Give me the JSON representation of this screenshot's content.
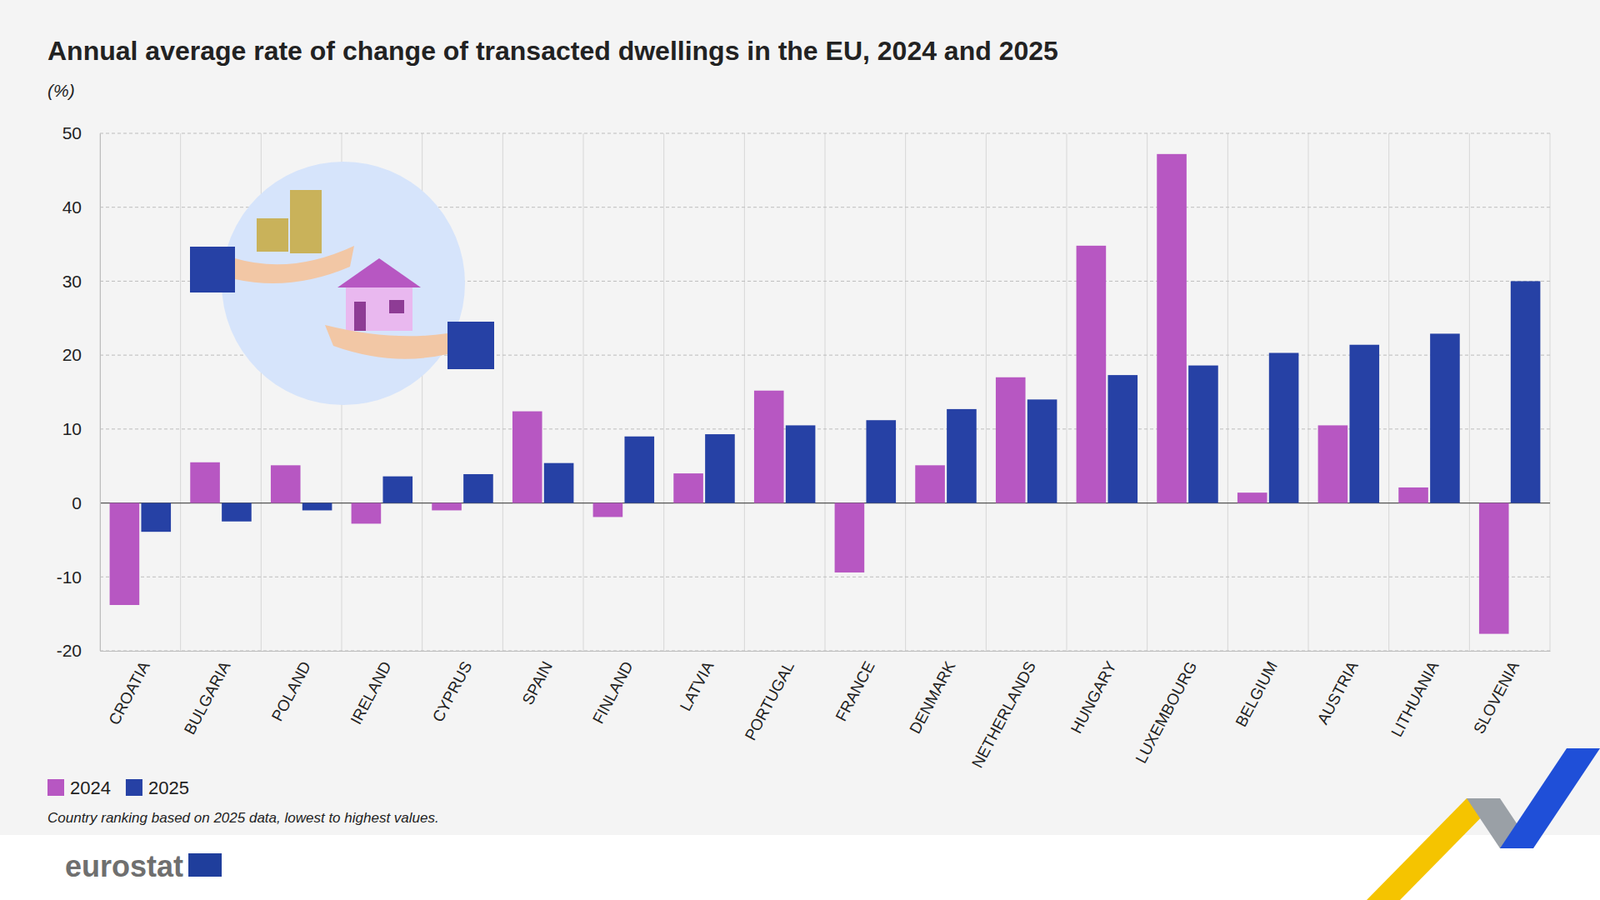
{
  "chart_data": {
    "type": "bar",
    "title": "Annual average rate of change of transacted dwellings in the EU, 2024 and 2025",
    "subtitle": "(%)",
    "note": "Country ranking based on 2025 data, lowest to highest values.",
    "source": "eurostat",
    "categories": [
      "CROATIA",
      "BULGARIA",
      "POLAND",
      "IRELAND",
      "CYPRUS",
      "SPAIN",
      "FINLAND",
      "LATVIA",
      "PORTUGAL",
      "FRANCE",
      "DENMARK",
      "NETHERLANDS",
      "HUNGARY",
      "LUXEMBOURG",
      "BELGIUM",
      "AUSTRIA",
      "LITHUANIA",
      "SLOVENIA"
    ],
    "series": [
      {
        "name": "2024",
        "color": "#b757c2",
        "values": [
          -13.8,
          5.5,
          5.1,
          -2.8,
          -1.0,
          12.4,
          -1.9,
          4.0,
          15.2,
          -9.4,
          5.1,
          17.0,
          34.8,
          47.2,
          1.4,
          10.5,
          2.1,
          -17.7
        ]
      },
      {
        "name": "2025",
        "color": "#2641a5",
        "values": [
          -3.9,
          -2.5,
          -1.0,
          3.6,
          3.9,
          5.4,
          9.0,
          9.3,
          10.5,
          11.2,
          12.7,
          14.0,
          17.3,
          18.6,
          20.3,
          21.4,
          22.9,
          30.0
        ]
      }
    ],
    "ylim": [
      -20,
      50
    ],
    "yticks": [
      -20,
      -10,
      0,
      10,
      20,
      30,
      40,
      50
    ],
    "grid": true,
    "legend": "bottom-left"
  }
}
